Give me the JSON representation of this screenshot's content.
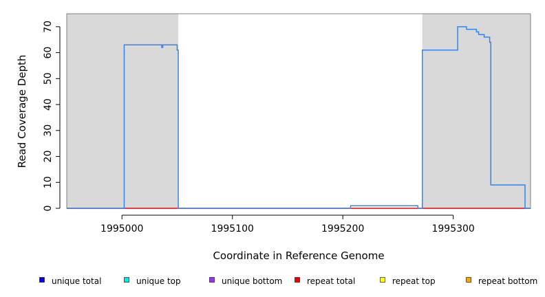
{
  "chart_data": {
    "type": "line",
    "title": "",
    "xlabel": "Coordinate in Reference Genome",
    "ylabel": "Read Coverage Depth",
    "xlim": [
      1994950,
      1995370
    ],
    "ylim": [
      0,
      75
    ],
    "x_ticks": [
      1995000,
      1995100,
      1995200,
      1995300
    ],
    "x_tick_labels": [
      "1995000",
      "1995100",
      "1995200",
      "1995300"
    ],
    "y_ticks": [
      0,
      10,
      20,
      30,
      40,
      50,
      60,
      70
    ],
    "y_tick_labels": [
      "0",
      "10",
      "20",
      "30",
      "40",
      "50",
      "60",
      "70"
    ],
    "grid": false,
    "shaded_regions": [
      {
        "x_start": 1994950,
        "x_end": 1995051,
        "color": "#d9d9d9"
      },
      {
        "x_start": 1995272,
        "x_end": 1995370,
        "color": "#d9d9d9"
      }
    ],
    "series": [
      {
        "name": "unique total",
        "color": "#2f86f0",
        "points": [
          [
            1994950,
            0
          ],
          [
            1995002,
            0
          ],
          [
            1995002,
            63
          ],
          [
            1995036,
            63
          ],
          [
            1995036,
            62
          ],
          [
            1995037,
            62
          ],
          [
            1995037,
            63
          ],
          [
            1995050,
            63
          ],
          [
            1995050,
            61
          ],
          [
            1995051,
            61
          ],
          [
            1995051,
            0
          ],
          [
            1995207,
            0
          ],
          [
            1995207,
            1
          ],
          [
            1995268,
            1
          ],
          [
            1995268,
            0
          ],
          [
            1995272,
            0
          ],
          [
            1995272,
            61
          ],
          [
            1995304,
            61
          ],
          [
            1995304,
            70
          ],
          [
            1995312,
            70
          ],
          [
            1995312,
            69
          ],
          [
            1995321,
            69
          ],
          [
            1995321,
            68
          ],
          [
            1995323,
            68
          ],
          [
            1995323,
            67
          ],
          [
            1995328,
            67
          ],
          [
            1995328,
            66
          ],
          [
            1995333,
            66
          ],
          [
            1995333,
            64
          ],
          [
            1995334,
            64
          ],
          [
            1995334,
            9
          ],
          [
            1995365,
            9
          ],
          [
            1995365,
            0
          ],
          [
            1995370,
            0
          ]
        ]
      },
      {
        "name": "repeat total",
        "color": "#e8000b",
        "points": [
          [
            1994950,
            0
          ],
          [
            1995370,
            0
          ]
        ]
      }
    ],
    "legend": {
      "placement": "bottom",
      "entries": [
        {
          "label": "unique total",
          "color": "#0000ee"
        },
        {
          "label": "unique top",
          "color": "#00e5e5"
        },
        {
          "label": "unique bottom",
          "color": "#9b30ff"
        },
        {
          "label": "repeat total",
          "color": "#ee0000"
        },
        {
          "label": "repeat top",
          "color": "#ffff00"
        },
        {
          "label": "repeat bottom",
          "color": "#ffa500"
        }
      ]
    }
  }
}
